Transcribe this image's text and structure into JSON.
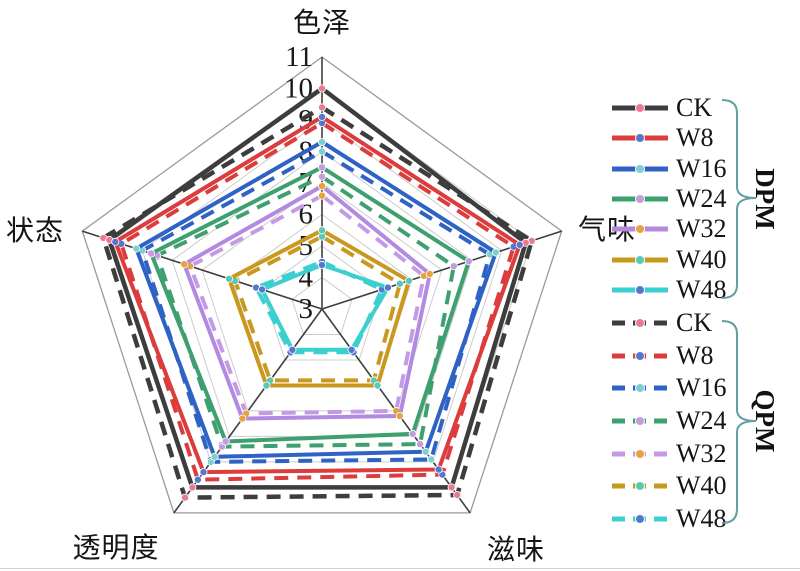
{
  "chart_data": {
    "type": "radar",
    "axes": [
      "色泽",
      "气味",
      "滋味",
      "透明度",
      "状态"
    ],
    "rmin": 3,
    "rmax": 11,
    "ticks": [
      3,
      4,
      5,
      6,
      7,
      8,
      9,
      10,
      11
    ],
    "grid": "pentagon rings at every tick, radial spokes to each axis vertex",
    "legend_position": "right",
    "groups": [
      {
        "label": "DPM",
        "line_style": "solid",
        "series": [
          {
            "name": "CK",
            "color": "#3d3d3d",
            "marker_color": "#e87c8e",
            "values": [
              10.0,
              9.8,
              10.0,
              10.0,
              10.1
            ]
          },
          {
            "name": "W8",
            "color": "#dd3c3c",
            "marker_color": "#5577cc",
            "values": [
              9.1,
              9.6,
              9.3,
              9.4,
              9.9
            ]
          },
          {
            "name": "W16",
            "color": "#2e62c5",
            "marker_color": "#7ecfcf",
            "values": [
              8.3,
              8.8,
              8.6,
              8.8,
              9.2
            ]
          },
          {
            "name": "W24",
            "color": "#3da06e",
            "marker_color": "#c39be0",
            "values": [
              7.5,
              7.9,
              7.9,
              8.2,
              8.7
            ]
          },
          {
            "name": "W32",
            "color": "#b28ae0",
            "marker_color": "#e8a23c",
            "values": [
              6.9,
              6.6,
              7.2,
              7.3,
              7.6
            ]
          },
          {
            "name": "W40",
            "color": "#c9981f",
            "marker_color": "#58c8b8",
            "values": [
              5.5,
              5.9,
              6.0,
              6.0,
              6.1
            ]
          },
          {
            "name": "W48",
            "color": "#3bcfcf",
            "marker_color": "#5577cc",
            "values": [
              4.4,
              5.2,
              4.6,
              4.6,
              5.0
            ]
          }
        ]
      },
      {
        "label": "QPM",
        "line_style": "dashed",
        "series": [
          {
            "name": "CK",
            "color": "#3d3d3d",
            "marker_color": "#e87c8e",
            "values": [
              9.4,
              10.0,
              10.3,
              10.4,
              10.3
            ]
          },
          {
            "name": "W8",
            "color": "#dd3c3c",
            "marker_color": "#5577cc",
            "values": [
              8.9,
              9.4,
              9.5,
              9.7,
              9.7
            ]
          },
          {
            "name": "W16",
            "color": "#2e62c5",
            "marker_color": "#7ecfcf",
            "values": [
              8.0,
              8.6,
              8.9,
              9.0,
              9.0
            ]
          },
          {
            "name": "W24",
            "color": "#3da06e",
            "marker_color": "#c39be0",
            "values": [
              7.2,
              7.4,
              8.3,
              8.4,
              8.5
            ]
          },
          {
            "name": "W32",
            "color": "#c49ae8",
            "marker_color": "#e8a23c",
            "values": [
              6.6,
              6.4,
              7.0,
              7.1,
              7.4
            ]
          },
          {
            "name": "W40",
            "color": "#c9981f",
            "marker_color": "#58c8b8",
            "values": [
              5.3,
              5.6,
              5.8,
              5.8,
              5.9
            ]
          },
          {
            "name": "W48",
            "color": "#3bcfcf",
            "marker_color": "#5577cc",
            "values": [
              4.5,
              5.0,
              4.7,
              4.7,
              5.2
            ]
          }
        ]
      }
    ],
    "style": {
      "grid_color": "#cccccc",
      "outer_ring_color": "#9a9a9a",
      "spoke_color": "#3f3f3f",
      "tick_color": "#1a1a1a",
      "brace_color": "#5f9fa5",
      "background": "#ffffff"
    }
  }
}
